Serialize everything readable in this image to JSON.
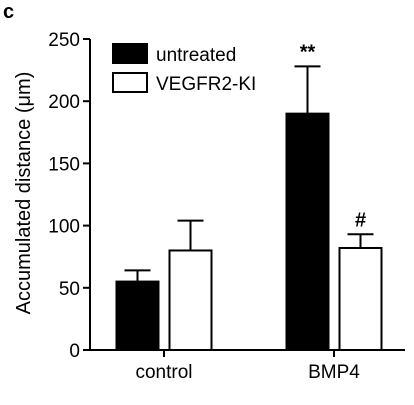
{
  "panel_label": "c",
  "chart_data": {
    "type": "bar",
    "categories": [
      "control",
      "BMP4"
    ],
    "ylabel": "Accumulated distance (μm)",
    "xlabel": "",
    "ylim": [
      0,
      250
    ],
    "yticks": [
      0,
      50,
      100,
      150,
      200,
      250
    ],
    "legend_position": "top-left",
    "grid": false,
    "series": [
      {
        "name": "untreated",
        "fill": "#000000",
        "values": [
          55,
          190
        ],
        "errors": [
          9,
          38
        ],
        "annotations": [
          "",
          "**"
        ]
      },
      {
        "name": "VEGFR2-KI",
        "fill": "#ffffff",
        "values": [
          80,
          82
        ],
        "errors": [
          24,
          11
        ],
        "annotations": [
          "",
          "#"
        ]
      }
    ]
  }
}
